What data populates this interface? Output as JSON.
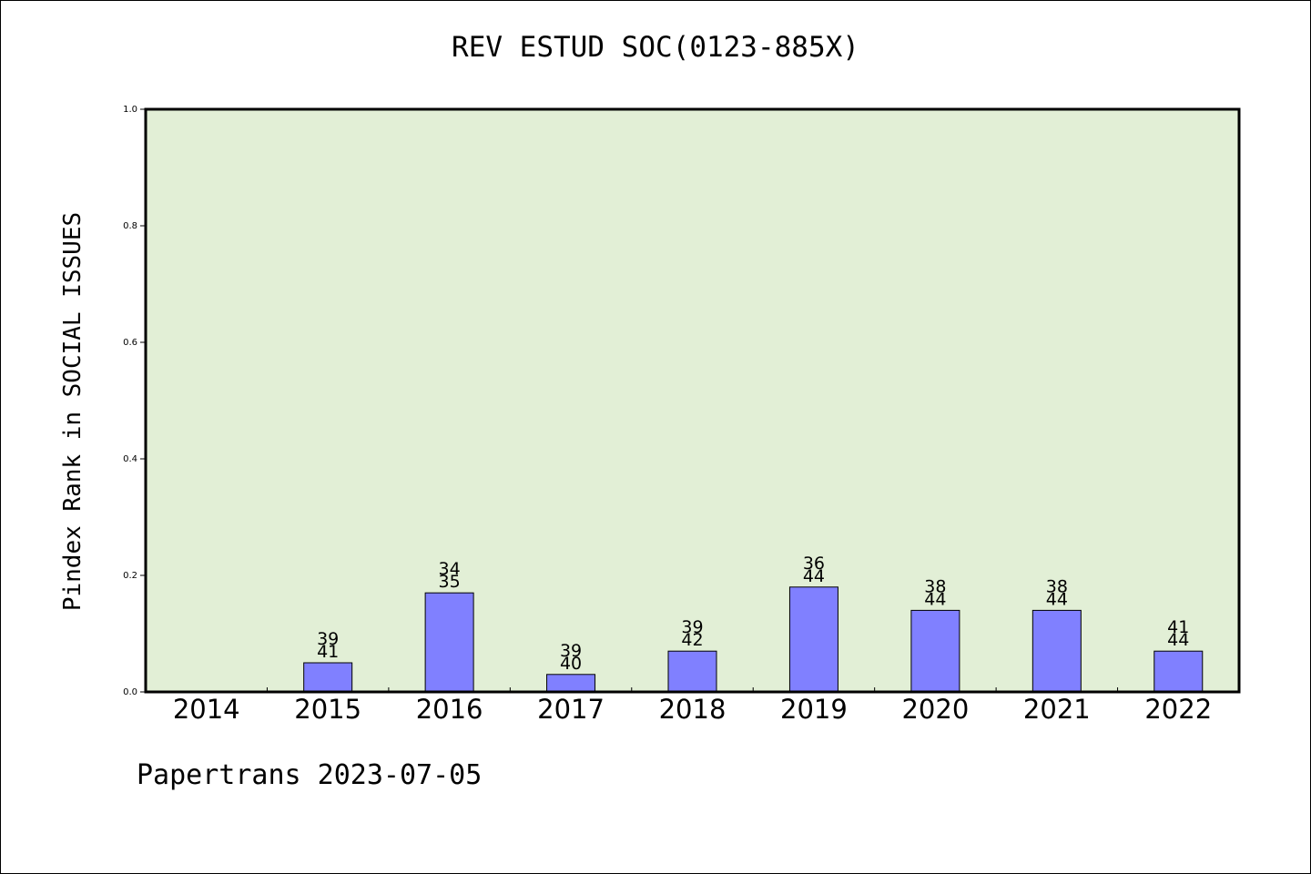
{
  "chart_data": {
    "type": "bar",
    "title": "REV ESTUD SOC(0123-885X)",
    "xlabel": "",
    "ylabel": "Pindex Rank in SOCIAL ISSUES",
    "ylim": [
      0,
      1.0
    ],
    "yticks": [
      "0.0",
      "0.2",
      "0.4",
      "0.6",
      "0.8",
      "1.0"
    ],
    "categories": [
      "2014",
      "2015",
      "2016",
      "2017",
      "2018",
      "2019",
      "2020",
      "2021",
      "2022"
    ],
    "values": [
      null,
      0.05,
      0.17,
      0.03,
      0.07,
      0.18,
      0.14,
      0.14,
      0.07
    ],
    "bar_labels": [
      null,
      [
        "39",
        "41"
      ],
      [
        "34",
        "35"
      ],
      [
        "39",
        "40"
      ],
      [
        "39",
        "42"
      ],
      [
        "36",
        "44"
      ],
      [
        "38",
        "44"
      ],
      [
        "38",
        "44"
      ],
      [
        "41",
        "44"
      ]
    ],
    "grid": false,
    "colors": {
      "plot_background": "#e2efd6",
      "bar_fill": "#8080ff",
      "bar_stroke": "#000000"
    }
  },
  "footer": {
    "text": "Papertrans 2023-07-05"
  }
}
